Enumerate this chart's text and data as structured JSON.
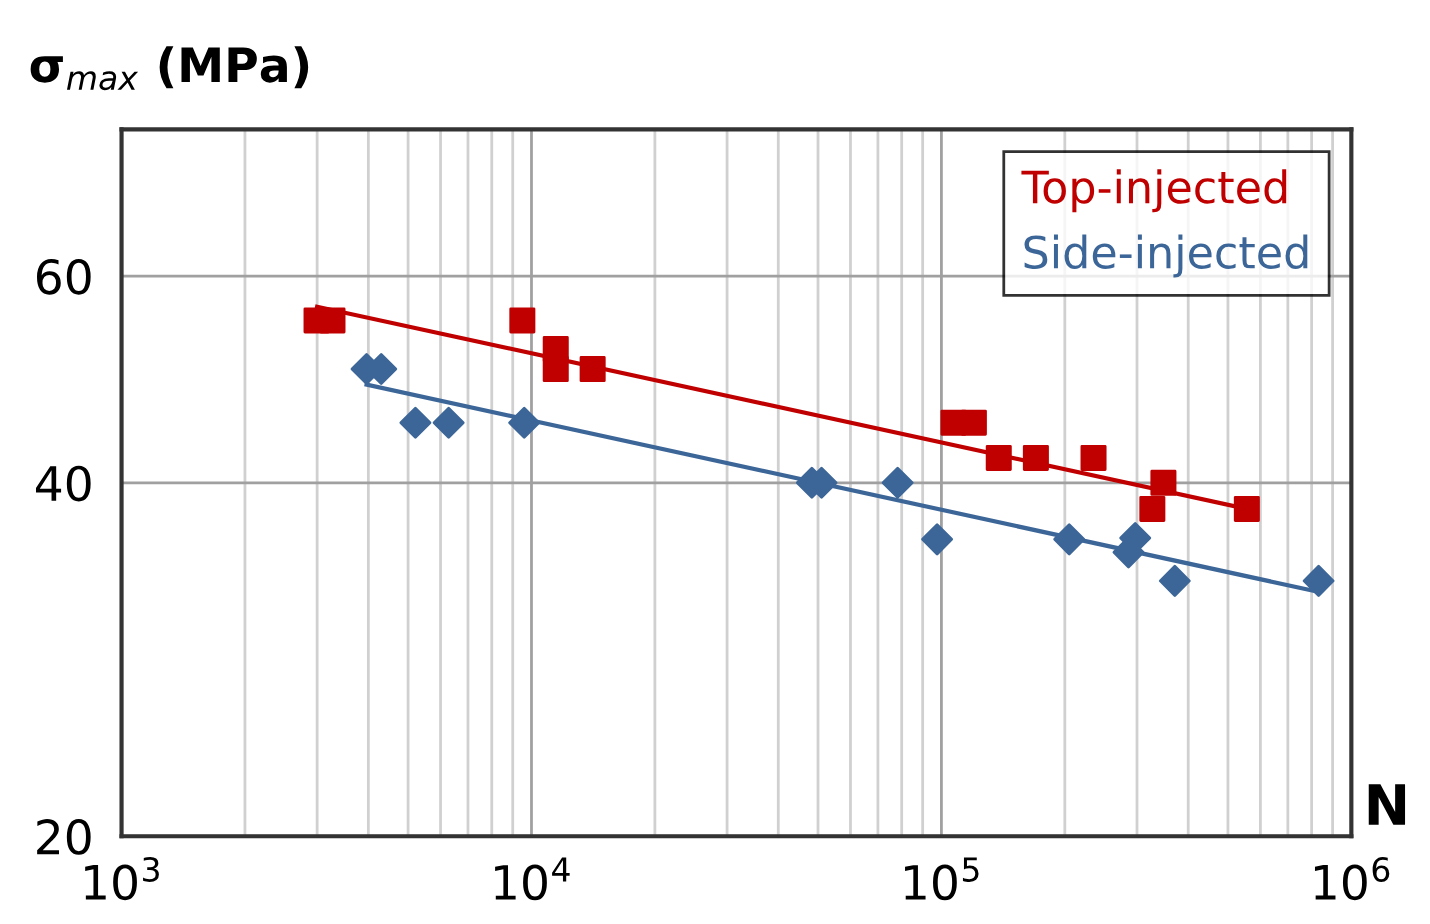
{
  "chart_data": {
    "type": "scatter",
    "ylabel": "σ$_{max}$ (MPa)",
    "xlabel": "N",
    "log": "xy",
    "xlim": [
      1000,
      1000000
    ],
    "xticks": [
      {
        "value": 1000,
        "label": "10$^{3}$"
      },
      {
        "value": 10000,
        "label": "10$^{4}$"
      },
      {
        "value": 100000,
        "label": "10$^{5}$"
      },
      {
        "value": 1000000,
        "label": "10$^{6}$"
      }
    ],
    "ylim": [
      20,
      80
    ],
    "yticks": [
      20,
      40,
      60
    ],
    "grid": true,
    "legend": "top right",
    "series": [
      {
        "name": "Top-injected",
        "color": "#c00000",
        "marker": "square",
        "x": [
          2990,
          3270,
          9500,
          11460,
          11460,
          14100,
          107000,
          120000,
          138000,
          170000,
          235000,
          348000,
          327000,
          556000
        ],
        "values": [
          55,
          55,
          55,
          52,
          50,
          50,
          45,
          45,
          42,
          42,
          42,
          40,
          38,
          38
        ]
      },
      {
        "name": "Side-injected",
        "color": "#3c6698",
        "marker": "diamond",
        "x": [
          3960,
          4300,
          5210,
          6280,
          9600,
          48300,
          51000,
          78200,
          97600,
          205000,
          297000,
          286000,
          371000,
          832000
        ],
        "values": [
          50,
          50,
          45,
          45,
          45,
          40,
          40,
          40,
          35.8,
          35.8,
          35.9,
          34.9,
          33,
          33
        ]
      },
      {
        "type": "line",
        "color": "#c00000",
        "marker": "none",
        "x": [
          3000,
          556000
        ],
        "values": [
          56.5,
          38
        ]
      },
      {
        "type": "line",
        "color": "#3c6698",
        "marker": "none",
        "x": [
          3960,
          830000
        ],
        "values": [
          48.5,
          32.3
        ]
      }
    ]
  }
}
